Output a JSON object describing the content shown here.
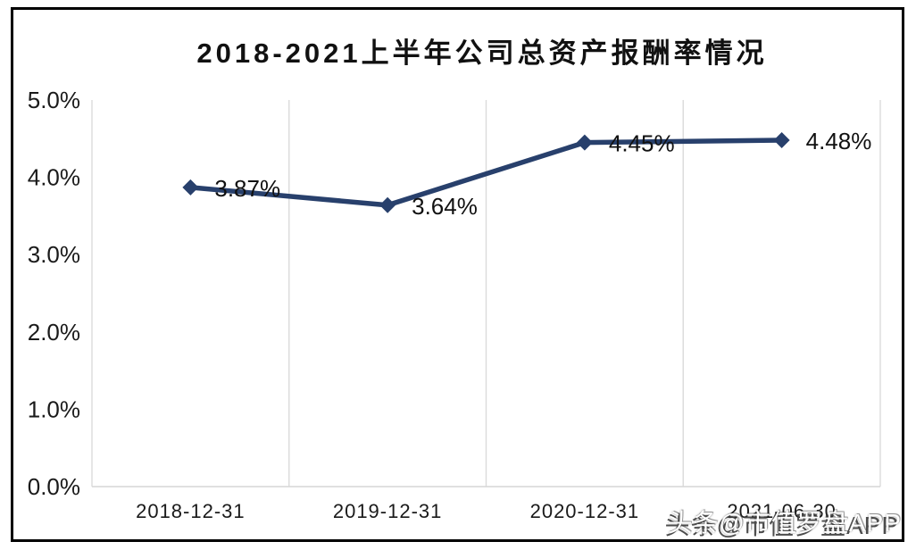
{
  "watermark": {
    "text": "头条@市值罗盘APP"
  },
  "colors": {
    "line": "#28406C",
    "marker": "#28406C",
    "grid": "#DBDBDB",
    "axis_line": "#D6D6D6",
    "tick_text": "#1A1A1A",
    "data_label_text": "#111111",
    "frame_border": "#000000",
    "background": "#FFFFFF"
  },
  "chart_data": {
    "type": "line",
    "title": "2018-2021上半年公司总资产报酬率情况",
    "categories": [
      "2018-12-31",
      "2019-12-31",
      "2020-12-31",
      "2021-06-30"
    ],
    "values": [
      3.87,
      3.64,
      4.45,
      4.48
    ],
    "data_labels": [
      "3.87%",
      "3.64%",
      "4.45%",
      "4.48%"
    ],
    "xlabel": "",
    "ylabel": "",
    "ylim": [
      0,
      5
    ],
    "ytick_labels": [
      "0.0%",
      "1.0%",
      "2.0%",
      "3.0%",
      "4.0%",
      "5.0%"
    ],
    "grid": "vertical-only",
    "legend": "none",
    "marker": "diamond"
  }
}
